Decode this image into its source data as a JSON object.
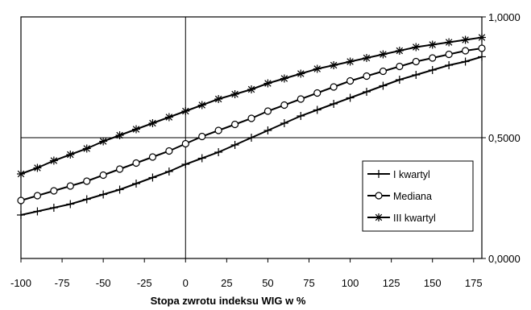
{
  "chart_data": {
    "type": "line",
    "xlabel": "Stopa zwrotu indeksu WIG w %",
    "ylabel": "",
    "xlim": [
      -100,
      180
    ],
    "ylim": [
      0,
      1
    ],
    "x_ticks": [
      "-100",
      "-75",
      "-50",
      "-25",
      "0",
      "25",
      "50",
      "75",
      "100",
      "125",
      "150",
      "175"
    ],
    "x_tick_values": [
      -100,
      -75,
      -50,
      -25,
      0,
      25,
      50,
      75,
      100,
      125,
      150,
      175
    ],
    "y_ticks": [
      "0,0000",
      "0,5000",
      "1,0000"
    ],
    "y_tick_values": [
      0,
      0.5,
      1
    ],
    "x": [
      -100,
      -90,
      -80,
      -70,
      -60,
      -50,
      -40,
      -30,
      -20,
      -10,
      0,
      10,
      20,
      30,
      40,
      50,
      60,
      70,
      80,
      90,
      100,
      110,
      120,
      130,
      140,
      150,
      160,
      170,
      180
    ],
    "series": [
      {
        "name": "I kwartyl",
        "marker": "plus",
        "values": [
          0.18,
          0.195,
          0.21,
          0.225,
          0.245,
          0.265,
          0.285,
          0.31,
          0.335,
          0.36,
          0.39,
          0.415,
          0.44,
          0.47,
          0.5,
          0.53,
          0.56,
          0.59,
          0.615,
          0.64,
          0.665,
          0.69,
          0.715,
          0.74,
          0.76,
          0.78,
          0.8,
          0.815,
          0.835
        ]
      },
      {
        "name": "Mediana",
        "marker": "circle",
        "values": [
          0.24,
          0.26,
          0.28,
          0.3,
          0.32,
          0.345,
          0.37,
          0.395,
          0.42,
          0.445,
          0.475,
          0.505,
          0.53,
          0.555,
          0.58,
          0.61,
          0.635,
          0.66,
          0.685,
          0.71,
          0.735,
          0.755,
          0.775,
          0.795,
          0.815,
          0.83,
          0.845,
          0.86,
          0.87
        ]
      },
      {
        "name": "III kwartyl",
        "marker": "star",
        "values": [
          0.35,
          0.375,
          0.405,
          0.43,
          0.455,
          0.485,
          0.51,
          0.535,
          0.56,
          0.585,
          0.61,
          0.635,
          0.66,
          0.68,
          0.7,
          0.725,
          0.745,
          0.765,
          0.785,
          0.8,
          0.815,
          0.83,
          0.845,
          0.86,
          0.875,
          0.885,
          0.895,
          0.905,
          0.915
        ]
      }
    ],
    "grid": {
      "vertical_at_x": 0,
      "horizontal_at_y": 0.5
    },
    "legend_position": "bottom-right"
  }
}
